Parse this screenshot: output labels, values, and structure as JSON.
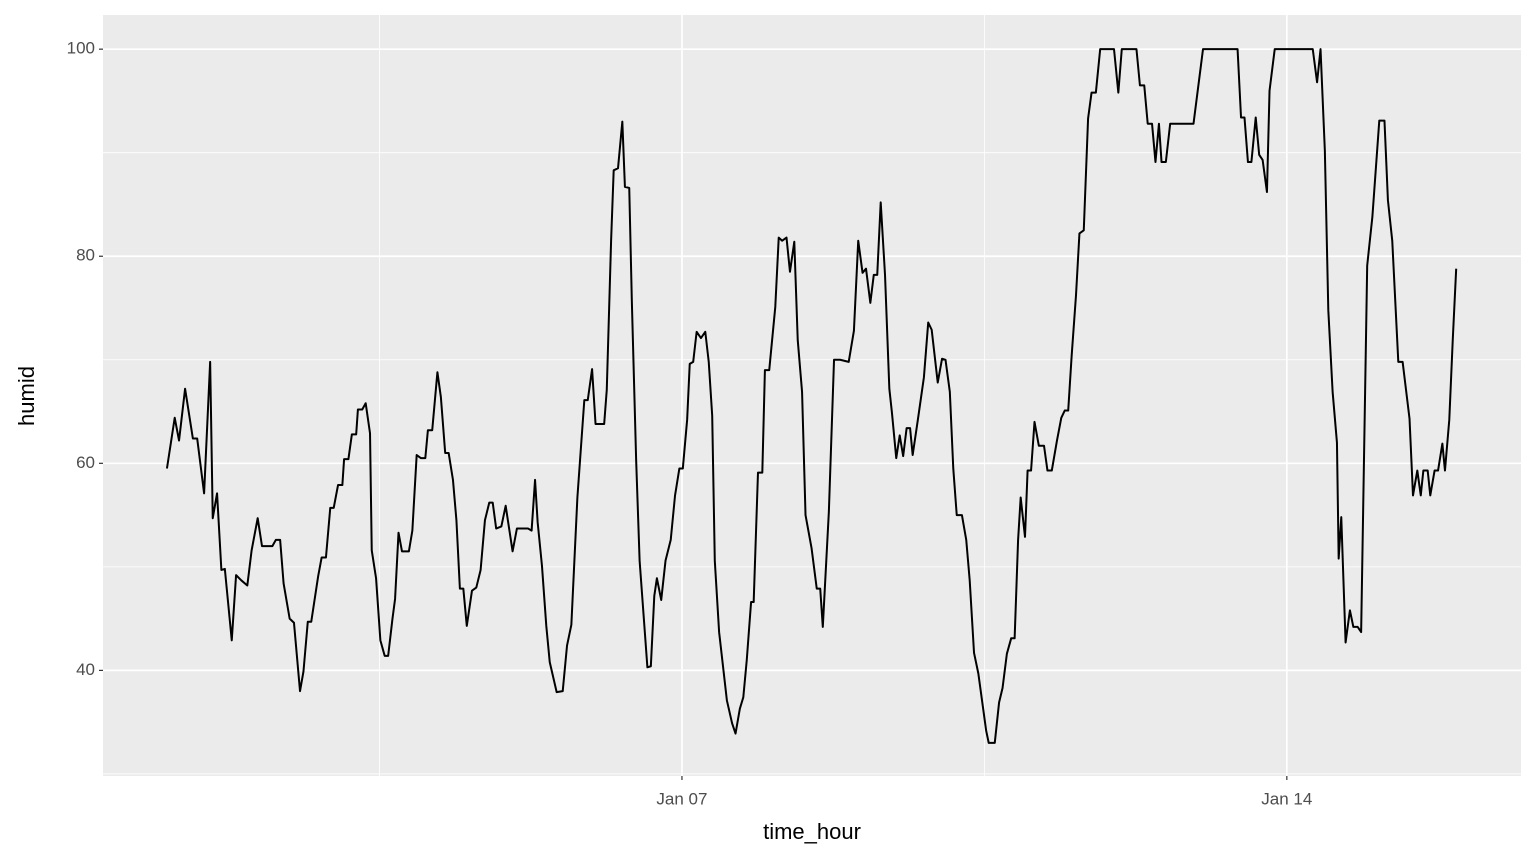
{
  "chart_data": {
    "type": "line",
    "x_label": "time_hour",
    "y_label": "humid",
    "color": "#000000",
    "grid": true,
    "x": [
      1.04,
      1.13,
      1.18,
      1.25,
      1.34,
      1.39,
      1.47,
      1.54,
      1.57,
      1.62,
      1.67,
      1.71,
      1.79,
      1.84,
      1.9,
      1.97,
      2.02,
      2.09,
      2.14,
      2.26,
      2.3,
      2.35,
      2.39,
      2.46,
      2.51,
      2.58,
      2.62,
      2.67,
      2.71,
      2.79,
      2.83,
      2.88,
      2.93,
      2.97,
      3.02,
      3.07,
      3.09,
      3.14,
      3.18,
      3.23,
      3.25,
      3.3,
      3.34,
      3.39,
      3.41,
      3.46,
      3.51,
      3.56,
      3.6,
      3.65,
      3.68,
      3.72,
      3.76,
      3.84,
      3.88,
      3.93,
      3.98,
      4.03,
      4.06,
      4.11,
      4.17,
      4.21,
      4.26,
      4.3,
      4.35,
      4.39,
      4.43,
      4.47,
      4.51,
      4.57,
      4.62,
      4.67,
      4.72,
      4.77,
      4.81,
      4.85,
      4.91,
      4.96,
      5.04,
      5.09,
      5.22,
      5.26,
      5.3,
      5.33,
      5.38,
      5.43,
      5.47,
      5.55,
      5.62,
      5.67,
      5.72,
      5.79,
      5.87,
      5.91,
      5.96,
      6.0,
      6.1,
      6.13,
      6.18,
      6.21,
      6.26,
      6.31,
      6.34,
      6.39,
      6.42,
      6.47,
      6.51,
      6.6,
      6.64,
      6.68,
      6.71,
      6.76,
      6.81,
      6.87,
      6.92,
      6.97,
      7.01,
      7.06,
      7.09,
      7.13,
      7.17,
      7.22,
      7.27,
      7.31,
      7.35,
      7.38,
      7.43,
      7.52,
      7.58,
      7.62,
      7.67,
      7.71,
      7.75,
      7.8,
      7.83,
      7.88,
      7.93,
      7.96,
      8.01,
      8.08,
      8.12,
      8.16,
      8.21,
      8.25,
      8.3,
      8.34,
      8.39,
      8.43,
      8.5,
      8.56,
      8.6,
      8.63,
      8.7,
      8.76,
      8.83,
      8.93,
      8.99,
      9.04,
      9.09,
      9.13,
      9.18,
      9.22,
      9.26,
      9.3,
      9.35,
      9.4,
      9.43,
      9.48,
      9.52,
      9.56,
      9.6,
      9.64,
      9.67,
      9.73,
      9.8,
      9.85,
      9.89,
      9.96,
      10.01,
      10.05,
      10.1,
      10.14,
      10.18,
      10.24,
      10.29,
      10.33,
      10.38,
      10.43,
      10.52,
      10.55,
      10.62,
      10.67,
      10.71,
      10.76,
      10.81,
      10.85,
      10.89,
      10.92,
      10.97,
      11.0,
      11.04,
      11.08,
      11.13,
      11.19,
      11.23,
      11.28,
      11.34,
      11.39,
      11.43,
      11.47,
      11.51,
      11.56,
      11.6,
      11.65,
      11.7,
      11.74,
      11.79,
      11.84,
      12.0,
      12.05,
      12.09,
      12.26,
      12.3,
      12.35,
      12.39,
      12.44,
      12.48,
      12.52,
      12.55,
      12.6,
      12.65,
      12.92,
      13.03,
      13.43,
      13.47,
      13.51,
      13.55,
      13.59,
      13.64,
      13.68,
      13.72,
      13.77,
      13.8,
      13.86,
      14.3,
      14.35,
      14.39,
      14.44,
      14.48,
      14.53,
      14.58,
      14.6,
      14.63,
      14.68,
      14.73,
      14.77,
      14.82,
      14.86,
      14.93,
      14.99,
      15.07,
      15.13,
      15.17,
      15.22,
      15.29,
      15.34,
      15.42,
      15.46,
      15.51,
      15.55,
      15.58,
      15.63,
      15.66,
      15.71,
      15.75,
      15.8,
      15.83,
      15.88,
      15.92,
      15.96
    ],
    "values": [
      59.5,
      64.4,
      62.2,
      67.2,
      62.4,
      62.4,
      57.1,
      69.8,
      54.7,
      57.1,
      49.7,
      49.8,
      42.9,
      49.2,
      48.7,
      48.2,
      51.6,
      54.7,
      52.0,
      52.0,
      52.6,
      52.6,
      48.4,
      45.0,
      44.6,
      38.0,
      39.9,
      44.7,
      44.7,
      49.1,
      50.9,
      50.9,
      55.7,
      55.7,
      57.9,
      57.9,
      60.4,
      60.4,
      62.8,
      62.8,
      65.2,
      65.2,
      65.8,
      62.9,
      51.6,
      48.9,
      42.9,
      41.4,
      41.4,
      45.0,
      46.9,
      53.3,
      51.5,
      51.5,
      53.5,
      60.8,
      60.5,
      60.5,
      63.2,
      63.2,
      68.8,
      66.4,
      61.0,
      61.0,
      58.4,
      54.5,
      47.9,
      47.9,
      44.3,
      47.7,
      48.0,
      49.7,
      54.5,
      56.2,
      56.2,
      53.7,
      53.9,
      55.9,
      51.5,
      53.7,
      53.7,
      53.5,
      58.4,
      54.3,
      50.1,
      44.3,
      40.8,
      37.9,
      38.0,
      42.4,
      44.4,
      56.7,
      66.1,
      66.1,
      69.1,
      63.8,
      63.8,
      67.1,
      81.5,
      88.3,
      88.5,
      93.0,
      86.7,
      86.6,
      75.7,
      60.3,
      50.6,
      40.3,
      40.4,
      47.2,
      48.9,
      46.8,
      50.6,
      52.6,
      56.9,
      59.5,
      59.5,
      64.2,
      69.6,
      69.8,
      72.7,
      72.1,
      72.7,
      69.8,
      64.6,
      50.6,
      43.7,
      37.1,
      34.9,
      33.9,
      36.3,
      37.4,
      41.0,
      46.6,
      46.6,
      59.1,
      59.1,
      69.0,
      69.0,
      75.1,
      81.8,
      81.5,
      81.8,
      78.5,
      81.4,
      71.9,
      66.9,
      55.0,
      51.8,
      47.9,
      47.9,
      44.2,
      55.3,
      70.0,
      70.0,
      69.8,
      72.8,
      81.5,
      78.4,
      78.8,
      75.5,
      78.2,
      78.2,
      85.2,
      78.2,
      67.2,
      64.9,
      60.5,
      62.7,
      60.7,
      63.4,
      63.4,
      60.8,
      64.2,
      68.3,
      73.6,
      72.9,
      67.8,
      70.1,
      70.0,
      66.9,
      59.5,
      55.0,
      55.0,
      52.6,
      48.7,
      41.7,
      39.7,
      34.2,
      33.0,
      33.0,
      36.9,
      38.3,
      41.6,
      43.1,
      43.1,
      52.6,
      56.7,
      52.9,
      59.3,
      59.3,
      64.0,
      61.7,
      61.7,
      59.3,
      59.3,
      62.2,
      64.4,
      65.1,
      65.1,
      70.4,
      76.2,
      82.2,
      82.5,
      93.3,
      95.8,
      95.8,
      100,
      100,
      95.8,
      100,
      100,
      96.5,
      96.5,
      92.8,
      92.8,
      89.1,
      92.8,
      89.1,
      89.1,
      92.8,
      92.8,
      100,
      100,
      93.4,
      93.4,
      89.1,
      89.1,
      93.4,
      89.8,
      89.3,
      86.2,
      96.0,
      100,
      100,
      96.8,
      100,
      90.2,
      74.8,
      66.9,
      62.0,
      50.8,
      54.8,
      42.7,
      45.8,
      44.2,
      44.2,
      43.7,
      79.1,
      83.8,
      93.1,
      93.1,
      85.4,
      81.5,
      69.8,
      69.8,
      64.3,
      56.9,
      59.3,
      56.9,
      59.3,
      59.3,
      56.9,
      59.3,
      59.3,
      61.9,
      59.3,
      64.2,
      71.9,
      78.8
    ],
    "xlim": [
      0.3,
      16.71
    ],
    "xticks": [
      {
        "value": 7,
        "label": "Jan 07"
      },
      {
        "value": 14,
        "label": "Jan 14"
      }
    ],
    "ylim": [
      29.8,
      103.3
    ],
    "yticks": [
      40,
      60,
      80,
      100
    ]
  }
}
